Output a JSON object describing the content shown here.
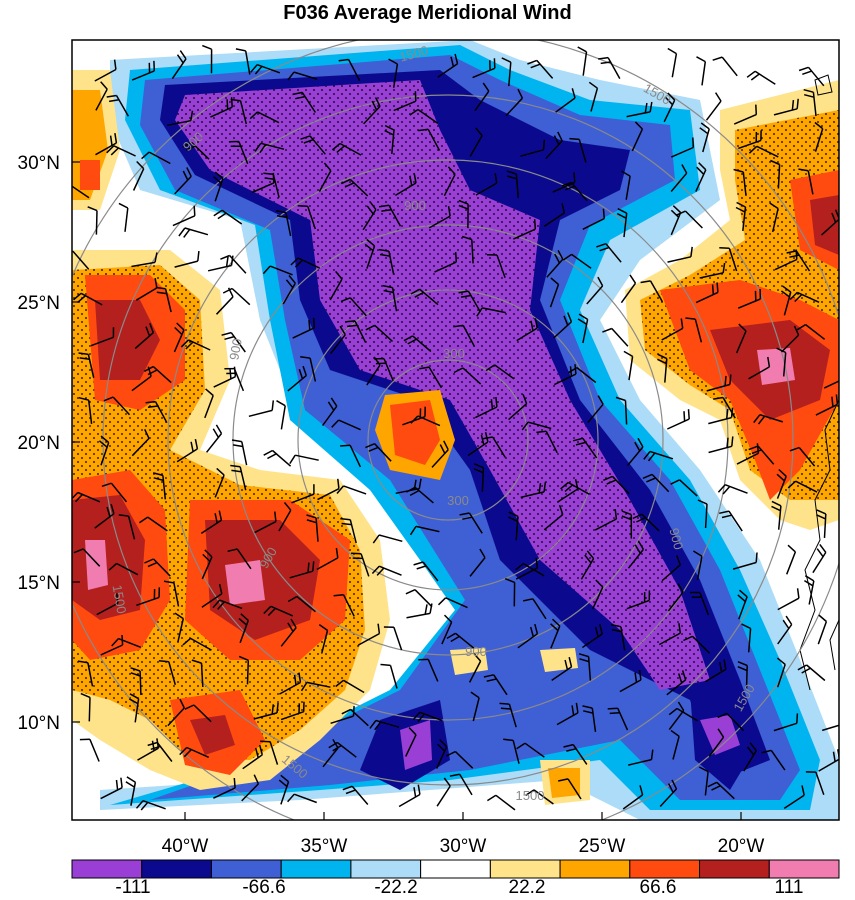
{
  "title": "F036 Average Meridional Wind",
  "lat_labels": [
    "30°N",
    "25°N",
    "20°N",
    "15°N",
    "10°N"
  ],
  "lon_labels": [
    "40°W",
    "35°W",
    "30°W",
    "25°W",
    "20°W"
  ],
  "colorbar": {
    "colors": [
      "#9a3fd6",
      "#0b0a8e",
      "#3f5fd4",
      "#00b4f0",
      "#acdcf7",
      "#ffffff",
      "#ffe38a",
      "#ffa500",
      "#ff4a10",
      "#b3201e",
      "#f07cb0"
    ],
    "tick_labels": [
      "-111",
      "-66.6",
      "-22.2",
      "22.2",
      "66.6",
      "111"
    ]
  },
  "range_rings": {
    "values": [
      "300",
      "900",
      "1500"
    ],
    "color": "#8a8a8a"
  },
  "ring_labels": [
    "1500",
    "1500",
    "900",
    "900",
    "300",
    "900",
    "300",
    "900",
    "900",
    "1500",
    "1500",
    "1500",
    "900",
    "1500"
  ]
}
